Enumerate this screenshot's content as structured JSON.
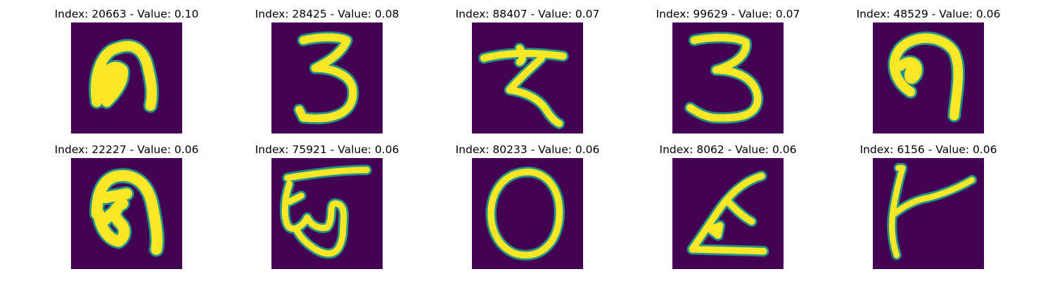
{
  "colors": {
    "background": "#440154",
    "stroke": "#fde725",
    "edge": "#21918c"
  },
  "panels": [
    {
      "title": "Index: 20663 - Value: 0.10",
      "glyph": "blob-n"
    },
    {
      "title": "Index: 28425 - Value: 0.08",
      "glyph": "three"
    },
    {
      "title": "Index: 88407 - Value: 0.07",
      "glyph": "hook-z"
    },
    {
      "title": "Index: 99629 - Value: 0.07",
      "glyph": "three-b"
    },
    {
      "title": "Index: 48529 - Value: 0.06",
      "glyph": "curl"
    },
    {
      "title": "Index: 22227 - Value: 0.06",
      "glyph": "blob-n-b"
    },
    {
      "title": "Index: 75921 - Value: 0.06",
      "glyph": "loops"
    },
    {
      "title": "Index: 80233 - Value: 0.06",
      "glyph": "zero"
    },
    {
      "title": "Index: 8062 - Value: 0.06",
      "glyph": "slant-l"
    },
    {
      "title": "Index: 6156 - Value: 0.06",
      "glyph": "fork"
    }
  ]
}
